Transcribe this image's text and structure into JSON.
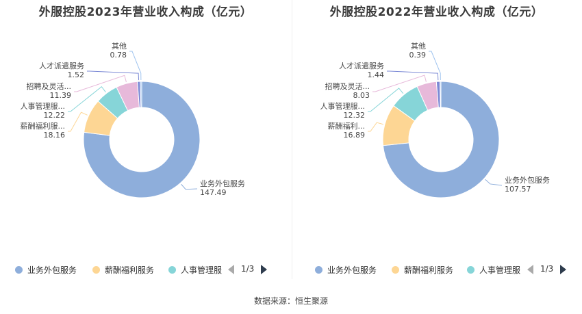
{
  "source": "数据来源：恒生聚源",
  "chart_data": [
    {
      "type": "pie",
      "title": "外服控股2023年营业收入构成（亿元）",
      "categories": [
        "业务外包服务",
        "薪酬福利服务",
        "人事管理服务",
        "招聘及灵活用工",
        "人才派遣服务",
        "其他"
      ],
      "labels": [
        "业务外包服务",
        "薪酬福利服...",
        "人事管理服...",
        "招聘及灵活...",
        "人才派遣服务",
        "其他"
      ],
      "values": [
        147.49,
        18.16,
        12.22,
        11.39,
        1.52,
        0.78
      ],
      "colors": [
        "#8eaedb",
        "#fdd694",
        "#86d5d8",
        "#e7b9da",
        "#7b89d5",
        "#9ec3ef"
      ],
      "legend": {
        "items": [
          "业务外包服务",
          "薪酬福利服务",
          "人事管理服"
        ],
        "page": "1/3"
      }
    },
    {
      "type": "pie",
      "title": "外服控股2022年营业收入构成（亿元）",
      "categories": [
        "业务外包服务",
        "薪酬福利服务",
        "人事管理服务",
        "招聘及灵活用工",
        "人才派遣服务",
        "其他"
      ],
      "labels": [
        "业务外包服务",
        "薪酬福利...",
        "人事管理服...",
        "招聘及灵活...",
        "人才派遣服务",
        "其他"
      ],
      "values": [
        107.57,
        16.89,
        12.32,
        8.03,
        1.44,
        0.39
      ],
      "colors": [
        "#8eaedb",
        "#fdd694",
        "#86d5d8",
        "#e7b9da",
        "#7b89d5",
        "#9ec3ef"
      ],
      "legend": {
        "items": [
          "业务外包服务",
          "薪酬福利服务",
          "人事管理服"
        ],
        "page": "1/3"
      }
    }
  ]
}
